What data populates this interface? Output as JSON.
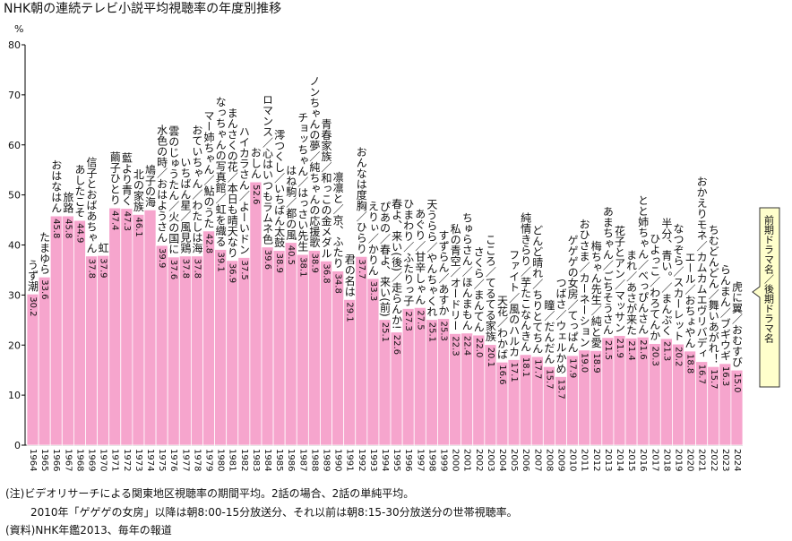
{
  "chart_data": {
    "type": "bar",
    "title": "NHK朝の連続テレビ小説平均視聴率の年度別推移",
    "y_unit": "%",
    "categories": [
      "1964",
      "1965",
      "1966",
      "1967",
      "1968",
      "1969",
      "1970",
      "1971",
      "1972",
      "1973",
      "1974",
      "1975",
      "1976",
      "1977",
      "1978",
      "1979",
      "1980",
      "1981",
      "1982",
      "1983",
      "1984",
      "1985",
      "1986",
      "1987",
      "1988",
      "1989",
      "1990",
      "1991",
      "1992",
      "1993",
      "1994",
      "1995",
      "1996",
      "1997",
      "1998",
      "1999",
      "2000",
      "2001",
      "2002",
      "2003",
      "2004",
      "2005",
      "2006",
      "2007",
      "2008",
      "2009",
      "2010",
      "2011",
      "2012",
      "2013",
      "2014",
      "2015",
      "2016",
      "2017",
      "2018",
      "2019",
      "2020",
      "2021",
      "2022",
      "2023",
      "2024"
    ],
    "values": [
      30.2,
      33.6,
      45.8,
      45.8,
      44.9,
      37.8,
      37.9,
      47.4,
      47.3,
      46.1,
      47.0,
      39.9,
      37.6,
      37.8,
      37.8,
      42.8,
      39.1,
      36.9,
      37.5,
      52.6,
      39.6,
      38.9,
      40.5,
      38.1,
      38.9,
      36.8,
      34.8,
      29.1,
      37.7,
      33.3,
      25.1,
      22.6,
      27.3,
      27.5,
      25.1,
      25.3,
      22.3,
      22.4,
      22.0,
      20.1,
      16.6,
      17.1,
      18.1,
      17.7,
      15.7,
      13.7,
      17.9,
      19.0,
      18.9,
      21.5,
      21.9,
      21.4,
      21.6,
      20.3,
      21.3,
      20.2,
      18.8,
      16.7,
      15.7,
      16.3,
      15.0
    ],
    "value_labels": [
      "30.2",
      "33.6",
      "45.8",
      "45.8",
      "44.9",
      "37.8",
      "37.9",
      "47.4",
      "47.3",
      "46.1",
      null,
      "39.9",
      "37.6",
      "37.8",
      "37.8",
      "42.8",
      "39.1",
      "36.9",
      "37.5",
      "52.6",
      "39.6",
      "38.9",
      "40.5",
      "38.1",
      "38.9",
      "36.8",
      "34.8",
      "29.1",
      "37.7",
      "33.3",
      "25.1",
      "22.6",
      "27.3",
      "27.5",
      "25.1",
      "25.3",
      "22.3",
      "22.4",
      "22.0",
      "20.1",
      "16.6",
      "17.1",
      "18.1",
      "17.7",
      "15.7",
      "13.7",
      "17.9",
      "19.0",
      "18.9",
      "21.5",
      "21.9",
      "21.4",
      "21.6",
      "20.3",
      "21.3",
      "20.2",
      "18.8",
      "16.7",
      "15.7",
      "16.3",
      "15.0"
    ],
    "bar_titles": [
      "うず潮",
      "たまゆら",
      "おはなはん",
      "旅路",
      "あしたこそ",
      "信子とおばあちゃん",
      "虹",
      "繭子ひとり",
      "藍より青く",
      "北の家族",
      "鳩子の海",
      "水色の時／おはようさん",
      "雲のじゅうたん／火の国に",
      "いちばん星／風見鶏",
      "おていちゃん／わたしは海",
      "マー姉ちゃん／鮎のうた",
      "なっちゃんの写真館／虹を織る",
      "まんさくの花／本日も晴天なり",
      "ハイカラさん／よーいドン",
      "おしん",
      "ロマンス／心はいつもラムネ色",
      "澪つくし／いちばん太鼓",
      "はね駒／都の風",
      "チョッちゃん／はっさい先生",
      "ノンちゃんの夢／純ちゃんの応援歌",
      "青春家族／和っこの金メダル",
      "凛凛と／京、ふたり",
      "君の名は",
      "おんなは度胸／ひらり",
      "えりぃ／かりん",
      "ぴあの／春よ、来い(前)",
      "春よ、来い(後)／走らんか!",
      "ひまわり／ふたりっ子",
      "あぐり／甘辛しゃん",
      "天うらら／やんちゃくれ",
      "すずらん／あすか",
      "私の青空／オードリー",
      "ちゅらさん／ほんまもん",
      "さくら／まんてん",
      "こころ／てるてる家族",
      "天花／わかば",
      "ファイト／風のハルカ",
      "純情きらり／芋たこなんきん",
      "どんど晴れ／ちりとてちん",
      "瞳／だんだん",
      "つばさ／ウェルかめ",
      "ゲゲゲの女房／てっぱん",
      "おひさま／カーネーション",
      "梅ちゃん先生／純と愛",
      "あまちゃん／ごちそうさん",
      "花子とアン／マッサン",
      "まれ／あさが来た",
      "とと姉ちゃん／べっぴんさん",
      "ひよっこ／わろてんか",
      "半分、青い。／まんぷく",
      "なつぞら／スカーレット",
      "エール／おちょやん",
      "おかえりモネ／カムカムエヴリバディ",
      "ちむどんどん／舞いあがれ！",
      "らんまん／ブギウギ",
      "虎に翼／おむすび"
    ],
    "callout": "前期ドラマ名／後期ドラマ名",
    "color": "#f6a5cd",
    "ylim": [
      0,
      80
    ],
    "yticks": [
      0,
      10,
      20,
      30,
      40,
      50,
      60,
      70,
      80
    ],
    "grid": false,
    "notes": [
      "(注)ビデオリサーチによる関東地区視聴率の期間平均。2話の場合、2話の単純平均。",
      "2010年「ゲゲゲの女房」以降は朝8:00-15分放送分、それ以前は朝8:15-30分放送分の世帯視聴率。",
      "(資料)NHK年鑑2013、毎年の報道"
    ]
  }
}
